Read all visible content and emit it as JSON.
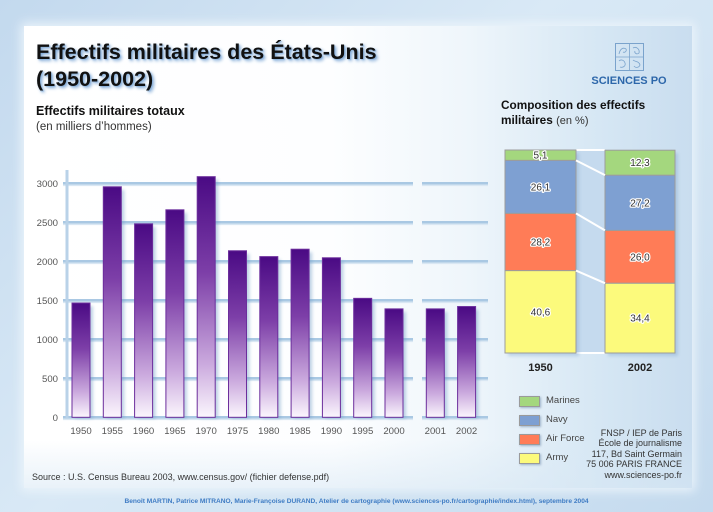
{
  "title": {
    "line1": "Effectifs militaires des États-Unis",
    "line2": "(1950-2002)"
  },
  "logo": {
    "icon": "sciences-po-logo-icon",
    "text": "SCIENCES PO"
  },
  "bar_section": {
    "heading": "Effectifs militaires totaux",
    "unit": "(en milliers d’hommes)"
  },
  "composition_section": {
    "heading_line1": "Composition des effectifs",
    "heading_line2": "militaires",
    "unit": "(en %)"
  },
  "legend": [
    {
      "name": "Marines",
      "color": "#a4d77e"
    },
    {
      "name": "Navy",
      "color": "#7ea0d2"
    },
    {
      "name": "Air Force",
      "color": "#ff7c57"
    },
    {
      "name": "Army",
      "color": "#fcfa7c"
    }
  ],
  "address": [
    "FNSP / IEP de Paris",
    "École de journalisme",
    "117, Bd Saint Germain",
    "75 006 PARIS FRANCE",
    "www.sciences-po.fr"
  ],
  "source": "Source : U.S. Census Bureau 2003, www.census.gov/ (fichier defense.pdf)",
  "credit": "Benoît MARTIN, Patrice MITRANO, Marie-Françoise DURAND, Atelier de cartographie (www.sciences-po.fr/cartographie/index.html), septembre 2004",
  "colors": {
    "bar_top": "#4a0a84",
    "bar_mid": "#7d3fa8",
    "bar_light": "#cbaade",
    "bar_bottom": "#fbf6fd",
    "bar_outline": "#6c2e9c",
    "gridline": "#a9c8e3",
    "connector_band": "#c5daee",
    "logo_blue": "#2d67aa",
    "credit_text": "#3f7cc4"
  },
  "chart_data": [
    {
      "type": "bar",
      "title": "Effectifs militaires totaux",
      "xlabel": "",
      "ylabel": "(en milliers d’hommes)",
      "categories": [
        "1950",
        "1955",
        "1960",
        "1965",
        "1970",
        "1975",
        "1980",
        "1985",
        "1990",
        "1995",
        "2000",
        "2001",
        "2002"
      ],
      "values": [
        1465,
        2955,
        2480,
        2660,
        3085,
        2135,
        2060,
        2155,
        2045,
        1525,
        1390,
        1390,
        1420
      ],
      "ylim": [
        0,
        3100
      ],
      "yticks": [
        0,
        500,
        1000,
        1500,
        2000,
        2500,
        3000
      ],
      "grid": true,
      "axis_break_after": "2000"
    },
    {
      "type": "bar",
      "stacked": true,
      "title": "Composition des effectifs militaires",
      "ylabel": "(en %)",
      "categories": [
        "1950",
        "2002"
      ],
      "series": [
        {
          "name": "Army",
          "values": [
            40.6,
            34.4
          ],
          "labels": [
            "40,6",
            "34,4"
          ]
        },
        {
          "name": "Air Force",
          "values": [
            28.2,
            26.0
          ],
          "labels": [
            "28,2",
            "26,0"
          ]
        },
        {
          "name": "Navy",
          "values": [
            26.1,
            27.2
          ],
          "labels": [
            "26,1",
            "27,2"
          ]
        },
        {
          "name": "Marines",
          "values": [
            5.1,
            12.3
          ],
          "labels": [
            "5,1",
            "12,3"
          ]
        }
      ],
      "ylim": [
        0,
        100
      ],
      "legend": "bottom-left"
    }
  ]
}
